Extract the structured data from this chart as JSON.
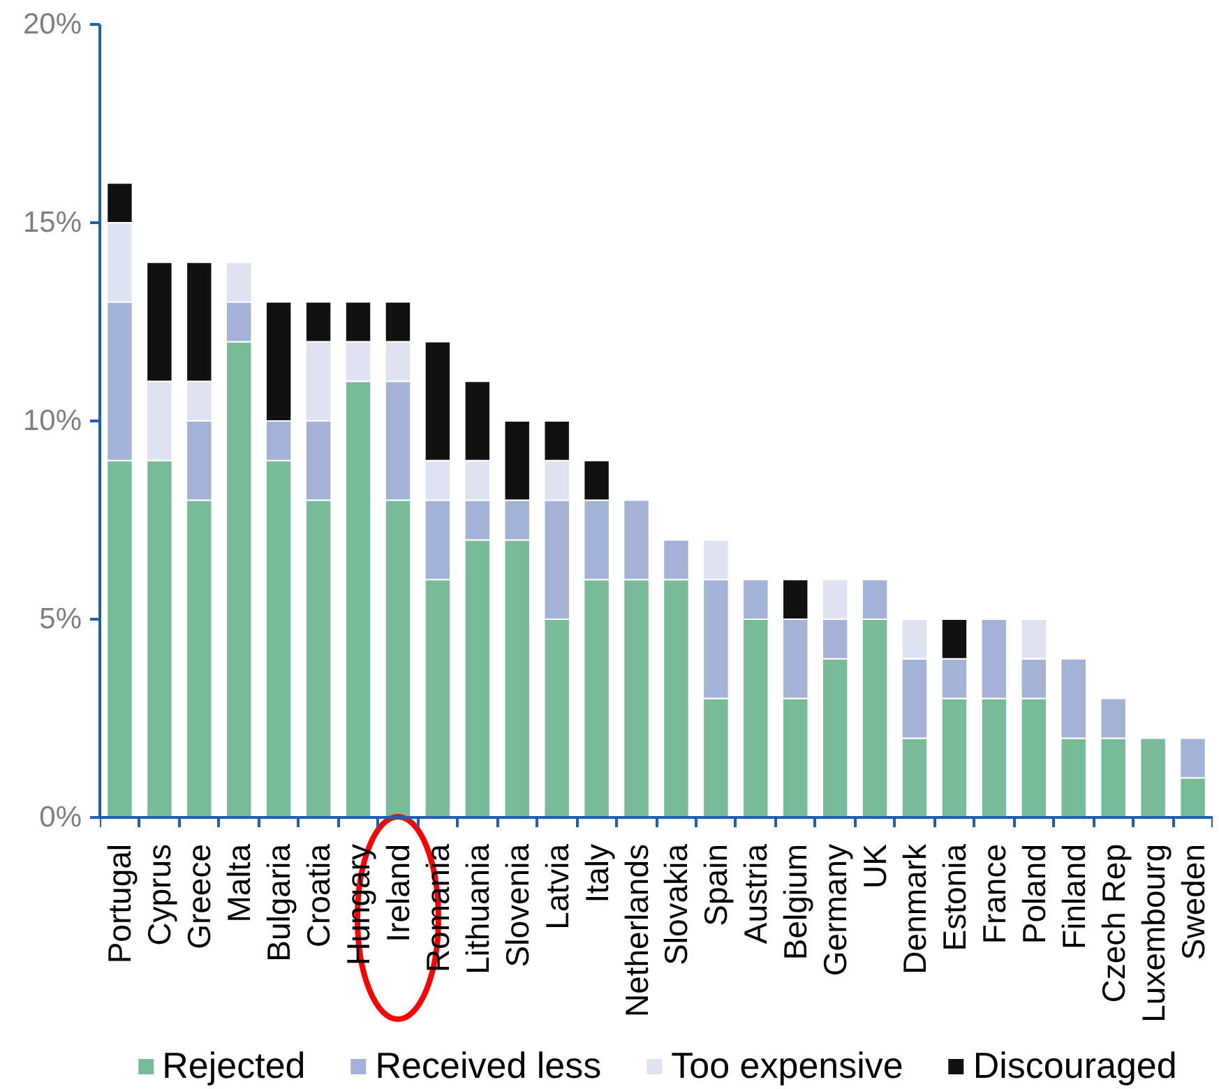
{
  "chart_data": {
    "type": "bar",
    "stacked": true,
    "categories": [
      "Portugal",
      "Cyprus",
      "Greece",
      "Malta",
      "Bulgaria",
      "Croatia",
      "Hungary",
      "Ireland",
      "Romania",
      "Lithuania",
      "Slovenia",
      "Latvia",
      "Italy",
      "Netherlands",
      "Slovakia",
      "Spain",
      "Austria",
      "Belgium",
      "Germany",
      "UK",
      "Denmark",
      "Estonia",
      "France",
      "Poland",
      "Finland",
      "Czech Rep",
      "Luxembourg",
      "Sweden"
    ],
    "series": [
      {
        "name": "Rejected",
        "color": "#78bb98",
        "values": [
          9,
          9,
          8,
          12,
          9,
          8,
          11,
          8,
          6,
          7,
          7,
          5,
          6,
          6,
          6,
          3,
          5,
          3,
          4,
          5,
          2,
          3,
          3,
          3,
          2,
          2,
          2,
          1
        ]
      },
      {
        "name": "Received less",
        "color": "#a5b2d8",
        "values": [
          4,
          0,
          2,
          1,
          1,
          2,
          0,
          3,
          2,
          1,
          1,
          3,
          2,
          2,
          1,
          3,
          1,
          2,
          1,
          1,
          2,
          1,
          2,
          1,
          2,
          1,
          0,
          1
        ]
      },
      {
        "name": "Too expensive",
        "color": "#dfe2f1",
        "values": [
          2,
          2,
          1,
          1,
          0,
          2,
          1,
          1,
          1,
          1,
          0,
          1,
          0,
          0,
          0,
          1,
          0,
          0,
          1,
          0,
          1,
          0,
          0,
          1,
          0,
          0,
          0,
          0
        ]
      },
      {
        "name": "Discouraged",
        "color": "#111111",
        "values": [
          1,
          3,
          3,
          0,
          3,
          1,
          1,
          1,
          3,
          2,
          2,
          1,
          1,
          0,
          0,
          0,
          0,
          1,
          0,
          0,
          0,
          1,
          0,
          0,
          0,
          0,
          0,
          0
        ]
      }
    ],
    "ylim": [
      0,
      20
    ],
    "yticks": [
      {
        "value": 0,
        "label": "0%"
      },
      {
        "value": 5,
        "label": "5%"
      },
      {
        "value": 10,
        "label": "10%"
      },
      {
        "value": 15,
        "label": "15%"
      },
      {
        "value": 20,
        "label": "20%"
      }
    ],
    "grid": false,
    "legend": "bottom"
  }
}
